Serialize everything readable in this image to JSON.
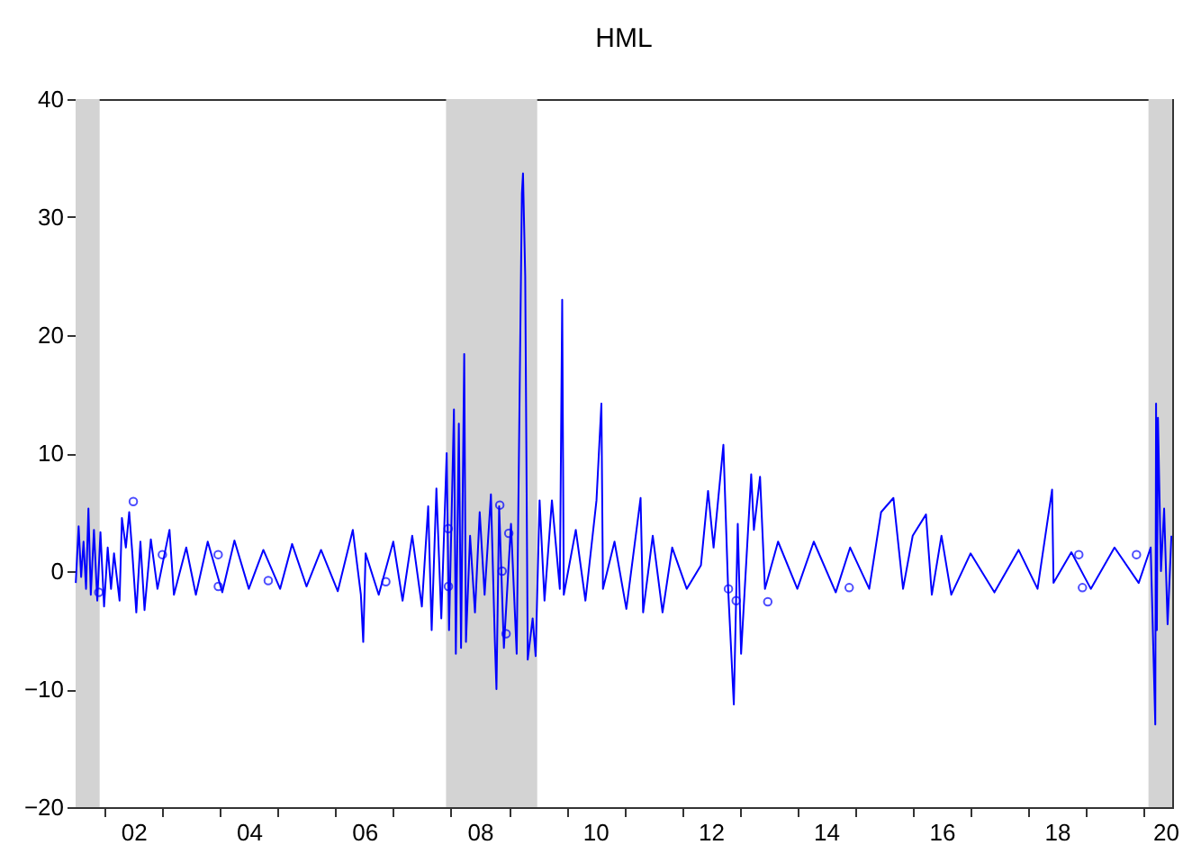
{
  "chart_data": {
    "type": "line",
    "title": "HML",
    "xlim": [
      "2001-07-01",
      "2020-06-30"
    ],
    "ylim": [
      -20,
      40
    ],
    "yticks": [
      -20,
      -10,
      0,
      10,
      20,
      30,
      40
    ],
    "xticks": [
      {
        "value": "2002-01-01",
        "label": null
      },
      {
        "value": "2002-07-02",
        "label": "02"
      },
      {
        "value": "2003-01-01",
        "label": null
      },
      {
        "value": "2004-01-01",
        "label": null
      },
      {
        "value": "2004-07-02",
        "label": "04"
      },
      {
        "value": "2005-01-01",
        "label": null
      },
      {
        "value": "2006-01-01",
        "label": null
      },
      {
        "value": "2006-07-02",
        "label": "06"
      },
      {
        "value": "2007-01-01",
        "label": null
      },
      {
        "value": "2008-01-01",
        "label": null
      },
      {
        "value": "2008-07-02",
        "label": "08"
      },
      {
        "value": "2009-01-01",
        "label": null
      },
      {
        "value": "2010-01-01",
        "label": null
      },
      {
        "value": "2010-07-02",
        "label": "10"
      },
      {
        "value": "2011-01-01",
        "label": null
      },
      {
        "value": "2012-01-01",
        "label": null
      },
      {
        "value": "2012-07-02",
        "label": "12"
      },
      {
        "value": "2013-01-01",
        "label": null
      },
      {
        "value": "2014-01-01",
        "label": null
      },
      {
        "value": "2014-07-02",
        "label": "14"
      },
      {
        "value": "2015-01-01",
        "label": null
      },
      {
        "value": "2016-01-01",
        "label": null
      },
      {
        "value": "2016-07-02",
        "label": "16"
      },
      {
        "value": "2017-01-01",
        "label": null
      },
      {
        "value": "2018-01-01",
        "label": null
      },
      {
        "value": "2018-07-02",
        "label": "18"
      },
      {
        "value": "2019-01-01",
        "label": null
      },
      {
        "value": "2020-01-01",
        "label": null
      },
      {
        "value": "2020-05-18",
        "label": "20"
      }
    ],
    "grid": false,
    "bands": [
      {
        "axis": "x",
        "from": "2001-07-01",
        "to": "2001-11-30",
        "color": "#d3d3d3"
      },
      {
        "axis": "x",
        "from": "2007-12-01",
        "to": "2009-06-30",
        "color": "#d3d3d3"
      },
      {
        "axis": "x",
        "from": "2020-02-01",
        "to": "2020-06-30",
        "color": "#d3d3d3"
      }
    ],
    "series": [
      {
        "color": "#0000ff",
        "marker": "none",
        "line_style": "solid",
        "x": [
          "2001-07-02",
          "2001-07-20",
          "2001-08-05",
          "2001-08-20",
          "2001-09-05",
          "2001-09-20",
          "2001-10-05",
          "2001-10-25",
          "2001-11-15",
          "2001-12-05",
          "2001-12-28",
          "2002-01-20",
          "2002-02-10",
          "2002-03-01",
          "2002-04-05",
          "2002-04-20",
          "2002-05-15",
          "2002-06-05",
          "2002-06-25",
          "2002-07-20",
          "2002-08-15",
          "2002-09-10",
          "2002-10-20",
          "2002-12-01",
          "2003-02-15",
          "2003-03-15",
          "2003-06-01",
          "2003-08-01",
          "2003-10-15",
          "2004-01-15",
          "2004-04-01",
          "2004-07-01",
          "2004-10-01",
          "2005-01-15",
          "2005-04-01",
          "2005-07-01",
          "2005-10-01",
          "2006-01-15",
          "2006-04-20",
          "2006-06-10",
          "2006-06-25",
          "2006-07-10",
          "2006-10-01",
          "2007-01-01",
          "2007-03-01",
          "2007-05-01",
          "2007-07-01",
          "2007-08-10",
          "2007-09-01",
          "2007-10-01",
          "2007-11-01",
          "2007-12-05",
          "2007-12-20",
          "2008-01-20",
          "2008-02-01",
          "2008-02-20",
          "2008-03-05",
          "2008-03-25",
          "2008-04-05",
          "2008-05-01",
          "2008-06-01",
          "2008-07-01",
          "2008-08-01",
          "2008-09-10",
          "2008-10-05",
          "2008-10-15",
          "2008-11-01",
          "2008-12-01",
          "2009-01-15",
          "2009-02-20",
          "2009-03-25",
          "2009-04-01",
          "2009-04-15",
          "2009-05-01",
          "2009-06-01",
          "2009-06-20",
          "2009-07-15",
          "2009-08-15",
          "2009-10-01",
          "2009-11-20",
          "2009-12-05",
          "2009-12-15",
          "2010-03-01",
          "2010-05-01",
          "2010-07-10",
          "2010-08-10",
          "2010-08-20",
          "2010-11-01",
          "2011-01-15",
          "2011-04-15",
          "2011-05-01",
          "2011-07-01",
          "2011-09-01",
          "2011-11-01",
          "2012-02-01",
          "2012-05-01",
          "2012-06-15",
          "2012-07-20",
          "2012-09-20",
          "2012-10-20",
          "2012-11-25",
          "2012-12-20",
          "2013-01-10",
          "2013-03-15",
          "2013-04-01",
          "2013-05-10",
          "2013-06-10",
          "2013-09-01",
          "2014-01-01",
          "2014-04-15",
          "2014-09-01",
          "2014-12-01",
          "2015-04-01",
          "2015-06-15",
          "2015-09-01",
          "2015-11-01",
          "2016-01-01",
          "2016-03-25",
          "2016-05-01",
          "2016-07-01",
          "2016-09-01",
          "2017-01-01",
          "2017-06-01",
          "2017-11-01",
          "2018-03-01",
          "2018-06-01",
          "2018-06-10",
          "2018-10-01",
          "2019-02-01",
          "2019-07-01",
          "2019-12-01",
          "2020-02-15",
          "2020-03-15",
          "2020-03-20",
          "2020-03-25",
          "2020-04-01",
          "2020-04-20",
          "2020-05-10",
          "2020-06-01",
          "2020-06-25"
        ],
        "values": [
          -1,
          3.8,
          -0.5,
          2.5,
          -1.5,
          5.3,
          -2,
          3.5,
          -2.5,
          3.3,
          -3,
          2,
          -1.5,
          1.5,
          -2.5,
          4.5,
          2,
          5,
          1.5,
          -3.5,
          2.5,
          -3.3,
          2.7,
          -1.5,
          3.5,
          -2,
          2,
          -2,
          2.5,
          -1.8,
          2.6,
          -1.5,
          1.8,
          -1.5,
          2.3,
          -1.3,
          1.8,
          -1.7,
          3.5,
          -2,
          -6,
          1.5,
          -2,
          2.5,
          -2.5,
          3,
          -3,
          5.5,
          -5,
          7,
          -4,
          10,
          -5,
          13.7,
          -7,
          12.5,
          -6.5,
          18.4,
          -6,
          3,
          -3.5,
          5,
          -2,
          6.5,
          -6,
          -10,
          5.5,
          -6.5,
          4,
          -7,
          32,
          33.7,
          25,
          -7.5,
          -4,
          -7.2,
          6,
          -2.5,
          6,
          -1.5,
          23,
          -2,
          3.5,
          -2.5,
          6,
          14.2,
          -1.5,
          2.5,
          -3.2,
          6.2,
          -3.5,
          3,
          -3.5,
          2,
          -1.5,
          0.5,
          6.8,
          2,
          10.7,
          -1.5,
          -11.3,
          4,
          -7,
          8.2,
          3.5,
          8,
          -1.5,
          2.5,
          -1.5,
          2.5,
          -1.8,
          2,
          -1.5,
          5,
          6.2,
          -1.5,
          3,
          4.8,
          -2,
          3,
          -2,
          1.5,
          -1.8,
          1.8,
          -1.5,
          6.9,
          -1,
          1.6,
          -1.5,
          2,
          -1,
          2,
          -13,
          14.2,
          -5,
          13,
          0,
          5.3,
          -4.5,
          3
        ]
      },
      {
        "type": "scatter",
        "color": "#0000ff",
        "marker": "circle",
        "x": [
          "2001-11-25",
          "2002-07-01",
          "2003-01-01",
          "2003-12-20",
          "2003-12-21",
          "2004-11-01",
          "2006-11-15",
          "2007-12-15",
          "2007-12-16",
          "2008-11-05",
          "2008-12-15",
          "2009-01-01",
          "2008-11-20",
          "2012-10-22",
          "2012-12-10",
          "2013-06-28",
          "2014-11-25",
          "2018-11-17",
          "2018-12-10",
          "2019-11-17"
        ],
        "values": [
          -1.8,
          5.9,
          1.4,
          1.4,
          -1.3,
          -0.8,
          -0.9,
          3.6,
          -1.3,
          5.6,
          -5.3,
          3.2,
          0,
          -1.5,
          -2.5,
          -2.6,
          -1.4,
          1.4,
          -1.4,
          1.4
        ]
      }
    ]
  }
}
